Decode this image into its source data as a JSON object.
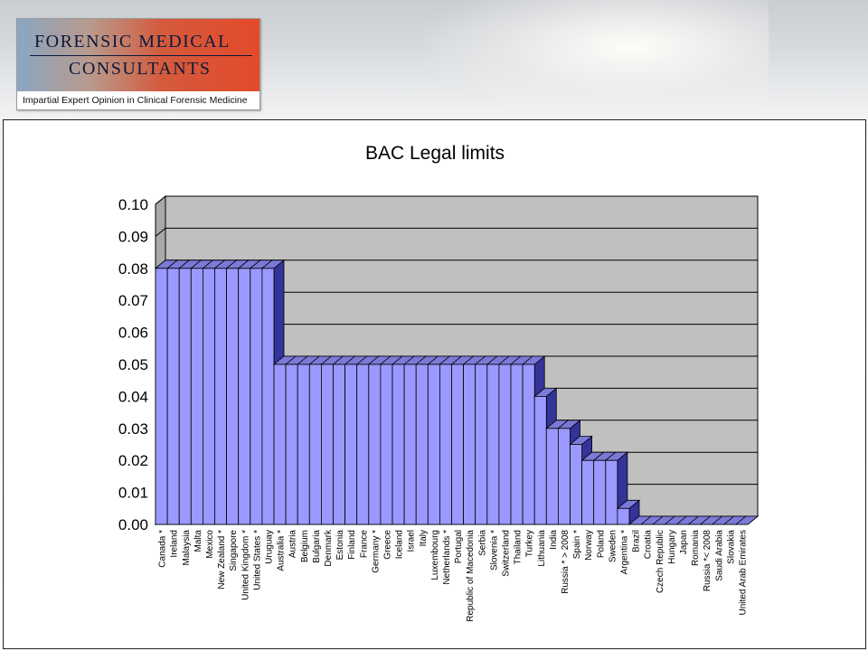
{
  "logo": {
    "line1": "FORENSIC MEDICAL",
    "line2": "CONSULTANTS",
    "tagline": "Impartial Expert Opinion in Clinical Forensic Medicine"
  },
  "colors": {
    "bar_front": "#9999ff",
    "bar_top": "#7a7ad9",
    "bar_side": "#333399",
    "plot_back": "#c0c0c0"
  },
  "chart_data": {
    "type": "bar",
    "title": "BAC Legal limits",
    "xlabel": "",
    "ylabel": "",
    "ylim": [
      0,
      0.1
    ],
    "yticks": [
      "0.00",
      "0.01",
      "0.02",
      "0.03",
      "0.04",
      "0.05",
      "0.06",
      "0.07",
      "0.08",
      "0.09",
      "0.10"
    ],
    "grid": true,
    "legend": "none",
    "style": "3d-bar",
    "categories": [
      "Canada *",
      "Ireland",
      "Malaysia",
      "Malta",
      "Mexico",
      "New Zealand *",
      "Singapore",
      "United Kingdom *",
      "United States *",
      "Uruguay",
      "Australia *",
      "Austria",
      "Belgium",
      "Bulgaria",
      "Denmark",
      "Estonia",
      "Finland",
      "France",
      "Germany *",
      "Greece",
      "Iceland",
      "Israel",
      "Italy",
      "Luxembourg",
      "Netherlands *",
      "Portugal",
      "Republic of Macedonia",
      "Serbia",
      "Slovenia *",
      "Switzerland",
      "Thailand",
      "Turkey",
      "Lithuania",
      "India",
      "Russia * > 2008",
      "Spain *",
      "Norway",
      "Poland",
      "Sweden",
      "Argentina *",
      "Brazil",
      "Croatia",
      "Czech Republic",
      "Hungary",
      "Japan",
      "Romania",
      "Russia *< 2008",
      "Saudi Arabia",
      "Slovakia",
      "United Arab Emirates"
    ],
    "values": [
      0.08,
      0.08,
      0.08,
      0.08,
      0.08,
      0.08,
      0.08,
      0.08,
      0.08,
      0.08,
      0.05,
      0.05,
      0.05,
      0.05,
      0.05,
      0.05,
      0.05,
      0.05,
      0.05,
      0.05,
      0.05,
      0.05,
      0.05,
      0.05,
      0.05,
      0.05,
      0.05,
      0.05,
      0.05,
      0.05,
      0.05,
      0.05,
      0.04,
      0.03,
      0.03,
      0.025,
      0.02,
      0.02,
      0.02,
      0.005,
      0,
      0,
      0,
      0,
      0,
      0,
      0,
      0,
      0,
      0
    ]
  }
}
